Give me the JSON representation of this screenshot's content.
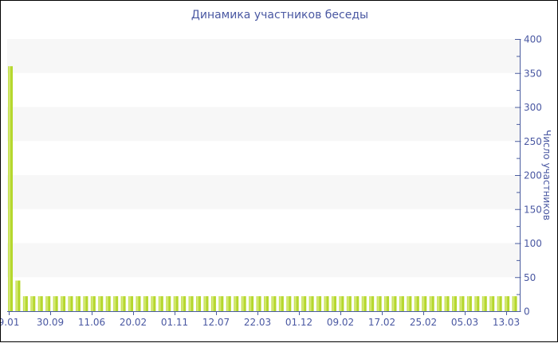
{
  "window": {
    "background": "#ffffff",
    "border_color": "#000000"
  },
  "chart_data": {
    "type": "bar",
    "title": "Динамика участников беседы",
    "ylabel": "Число участников",
    "xlabel": "",
    "axis_side": "right",
    "ylim": [
      0,
      400
    ],
    "y_tick_labels": [
      0,
      50,
      100,
      150,
      200,
      250,
      300,
      350,
      400
    ],
    "y_minor_step": 25,
    "grid": "alternating horizontal 50-unit bands, light gray on white",
    "legend_position": "none",
    "x_tick_labels": [
      "9.01",
      "30.09",
      "11.06",
      "20.02",
      "01.11",
      "12.07",
      "22.03",
      "01.12",
      "09.02",
      "17.02",
      "25.02",
      "05.03",
      "13.03"
    ],
    "values": [
      360,
      45,
      22,
      22,
      22,
      22,
      22,
      22,
      22,
      22,
      22,
      22,
      22,
      22,
      22,
      22,
      22,
      22,
      22,
      22,
      22,
      22,
      22,
      22,
      22,
      22,
      22,
      22,
      22,
      22,
      22,
      22,
      22,
      22,
      22,
      22,
      22,
      22,
      22,
      22,
      22,
      22,
      22,
      22,
      22,
      22,
      22,
      22,
      22,
      22,
      22,
      22,
      22,
      22,
      22,
      22,
      22,
      22,
      22,
      22,
      22,
      22,
      22,
      22,
      22,
      22,
      22,
      22
    ],
    "colors": {
      "bar": "#b4d72c",
      "bar_highlight": "#dcec85",
      "axis": "#4a5c9f",
      "text": "#4a58a2",
      "band": "#f7f7f7"
    }
  }
}
